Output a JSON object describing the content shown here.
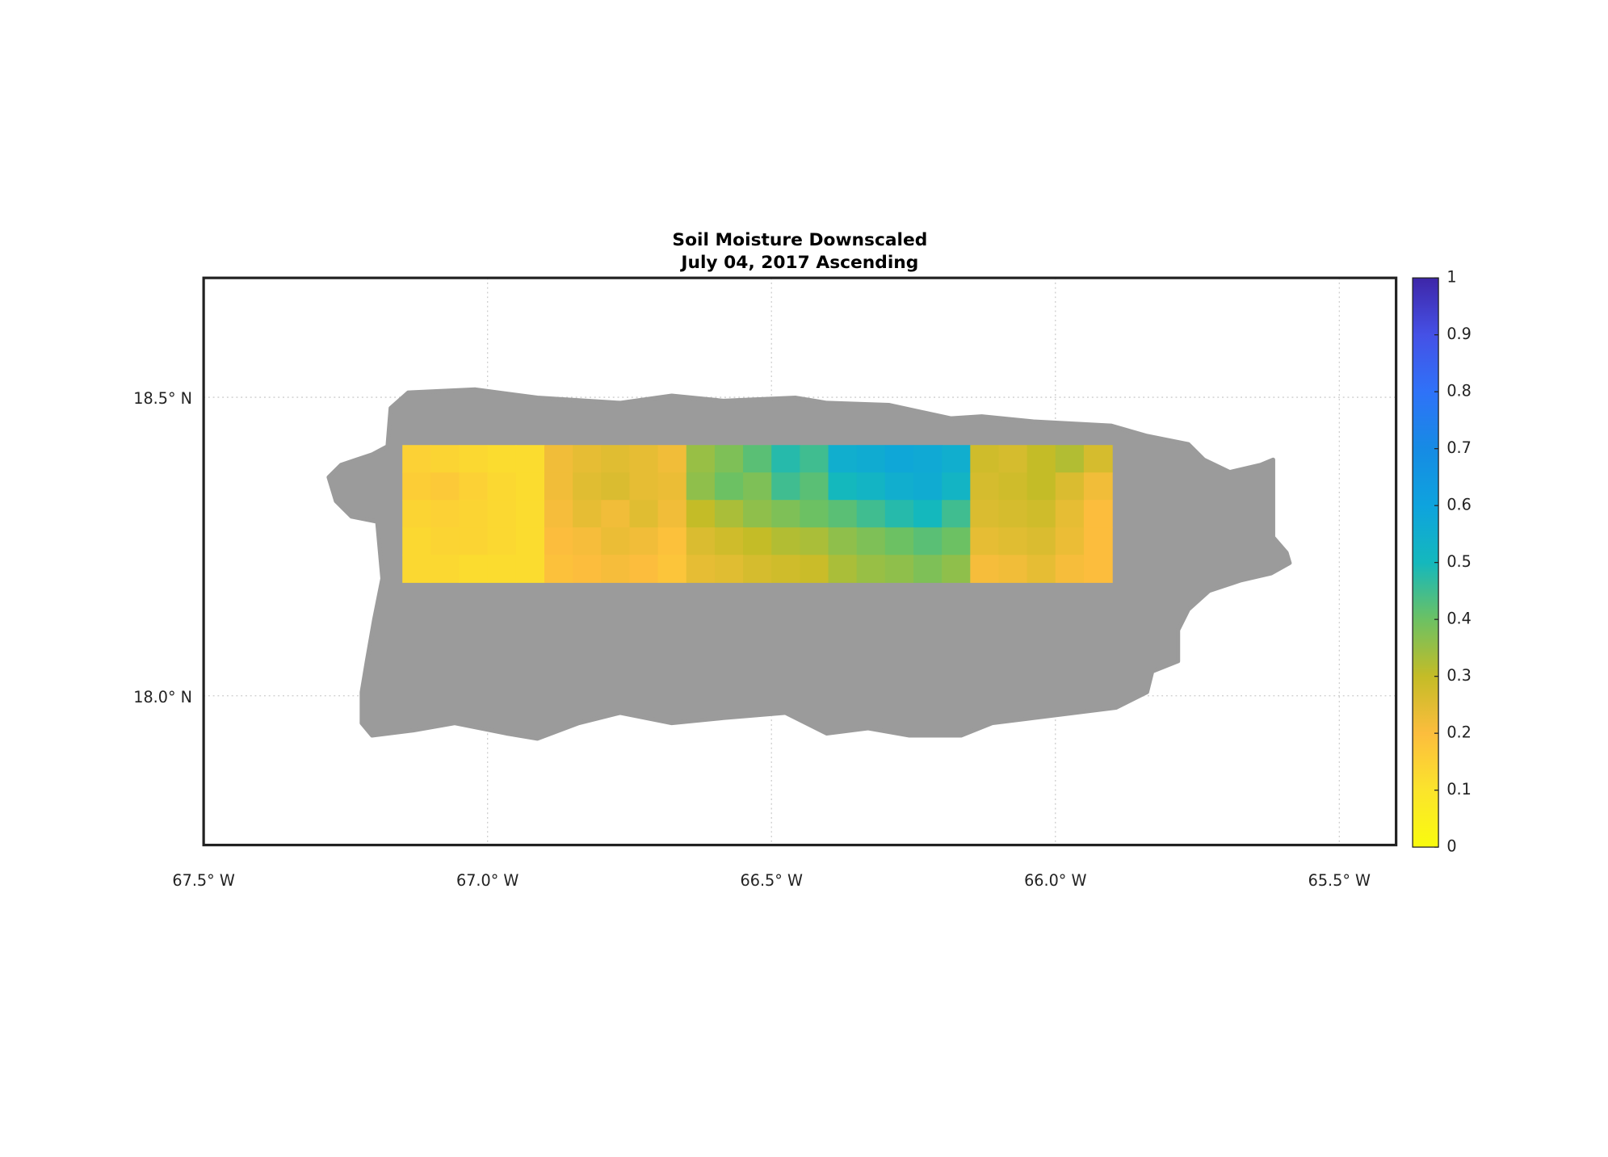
{
  "chart_data": {
    "type": "heatmap",
    "title": "Soil Moisture Downscaled",
    "subtitle": "July 04, 2017 Ascending",
    "xlim": [
      -67.5,
      -65.4
    ],
    "ylim": [
      17.75,
      18.7
    ],
    "xticks": [
      {
        "value": -67.5,
        "label": "67.5° W"
      },
      {
        "value": -67.0,
        "label": "67.0° W"
      },
      {
        "value": -66.5,
        "label": "66.5° W"
      },
      {
        "value": -66.0,
        "label": "66.0° W"
      },
      {
        "value": -65.5,
        "label": "65.5° W"
      }
    ],
    "yticks": [
      {
        "value": 18.0,
        "label": "18.0° N"
      },
      {
        "value": 18.5,
        "label": "18.5° N"
      }
    ],
    "grid": true,
    "colormap": "parula",
    "clim": [
      0,
      1
    ],
    "cticks": [
      0,
      0.1,
      0.2,
      0.3,
      0.4,
      0.5,
      0.6,
      0.7,
      0.8,
      0.9,
      1
    ],
    "x": [
      -67.125,
      -67.075,
      -67.025,
      -66.975,
      -66.925,
      -66.875,
      -66.825,
      -66.775,
      -66.725,
      -66.675,
      -66.625,
      -66.575,
      -66.525,
      -66.475,
      -66.425,
      -66.375,
      -66.325,
      -66.275,
      -66.225,
      -66.175,
      -66.125,
      -66.075,
      -66.025,
      -65.975,
      -65.925
    ],
    "y": [
      18.397,
      18.351,
      18.305,
      18.259,
      18.213
    ],
    "z": [
      [
        0.15,
        0.14,
        0.13,
        0.12,
        0.12,
        0.22,
        0.24,
        0.25,
        0.24,
        0.22,
        0.35,
        0.38,
        0.42,
        0.48,
        0.45,
        0.55,
        0.56,
        0.58,
        0.57,
        0.55,
        0.28,
        0.27,
        0.3,
        0.32,
        0.27
      ],
      [
        0.16,
        0.17,
        0.15,
        0.13,
        0.12,
        0.22,
        0.25,
        0.26,
        0.24,
        0.23,
        0.36,
        0.4,
        0.38,
        0.45,
        0.42,
        0.5,
        0.52,
        0.55,
        0.56,
        0.52,
        0.27,
        0.28,
        0.3,
        0.26,
        0.22
      ],
      [
        0.14,
        0.15,
        0.14,
        0.13,
        0.12,
        0.21,
        0.24,
        0.22,
        0.25,
        0.22,
        0.3,
        0.33,
        0.36,
        0.38,
        0.4,
        0.42,
        0.45,
        0.48,
        0.5,
        0.45,
        0.26,
        0.27,
        0.28,
        0.24,
        0.2
      ],
      [
        0.13,
        0.14,
        0.14,
        0.13,
        0.12,
        0.2,
        0.21,
        0.23,
        0.22,
        0.19,
        0.26,
        0.28,
        0.3,
        0.32,
        0.33,
        0.36,
        0.38,
        0.4,
        0.42,
        0.4,
        0.24,
        0.25,
        0.26,
        0.23,
        0.2
      ],
      [
        0.13,
        0.13,
        0.12,
        0.12,
        0.12,
        0.19,
        0.2,
        0.21,
        0.2,
        0.18,
        0.24,
        0.25,
        0.27,
        0.28,
        0.29,
        0.33,
        0.35,
        0.36,
        0.38,
        0.36,
        0.21,
        0.22,
        0.24,
        0.21,
        0.2
      ]
    ]
  }
}
